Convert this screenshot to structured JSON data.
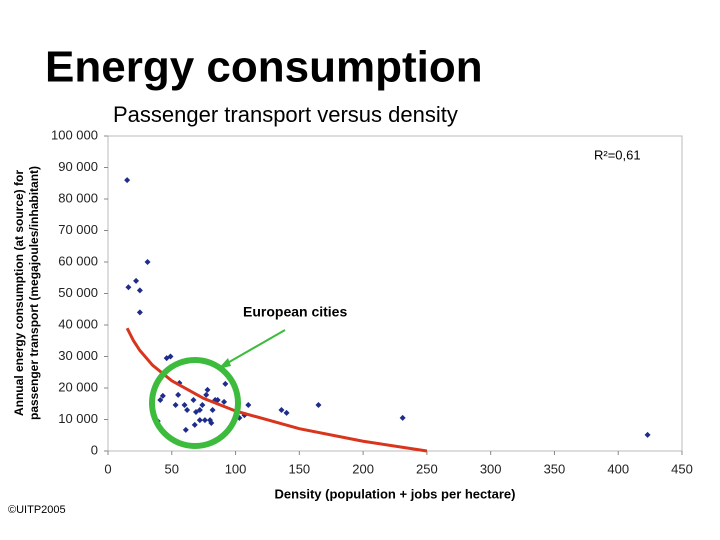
{
  "title": "Energy consumption",
  "footer": "©UITP2005",
  "chart_data": {
    "type": "scatter",
    "title": "Passenger transport versus density",
    "xlabel": "Density (population + jobs per hectare)",
    "ylabel": [
      "Annual energy consumption (at source) for",
      "passenger transport (megajoules/inhabitant)"
    ],
    "xlim": [
      0,
      450
    ],
    "ylim": [
      0,
      100000
    ],
    "xticks": [
      0,
      50,
      100,
      150,
      200,
      250,
      300,
      350,
      400,
      450
    ],
    "yticks": [
      0,
      {
        "value": 10000,
        "label": "10 000"
      },
      {
        "value": 20000,
        "label": "20 000"
      },
      {
        "value": 30000,
        "label": "30 000"
      },
      {
        "value": 40000,
        "label": "40 000"
      },
      {
        "value": 50000,
        "label": "50 000"
      },
      {
        "value": 60000,
        "label": "60 000"
      },
      {
        "value": 70000,
        "label": "70 000"
      },
      {
        "value": 80000,
        "label": "80 000"
      },
      {
        "value": 90000,
        "label": "90 000"
      },
      {
        "value": 100000,
        "label": "100 000"
      }
    ],
    "grid": false,
    "series": [
      {
        "color": "#1f2d8a",
        "x": [
          15,
          16,
          22,
          25,
          31,
          25,
          46,
          49,
          43,
          41,
          39,
          53,
          56,
          55,
          60,
          62,
          67,
          61,
          68,
          72,
          74,
          77,
          78,
          80,
          76,
          82,
          84,
          86,
          81,
          91,
          92,
          103,
          107,
          110,
          136,
          140,
          165,
          231,
          423,
          69,
          72
        ],
        "values": [
          86000,
          52000,
          54000,
          51000,
          60000,
          44000,
          29500,
          30000,
          17500,
          16200,
          9500,
          14600,
          21600,
          17800,
          14600,
          13000,
          16200,
          6700,
          8300,
          13000,
          14600,
          17800,
          19400,
          9800,
          9800,
          13000,
          16200,
          16200,
          8900,
          15600,
          21300,
          10500,
          11400,
          14600,
          13000,
          12100,
          14600,
          10500,
          5100,
          12400,
          9800
        ]
      }
    ],
    "trendline": {
      "color": "#d9341c",
      "x": [
        15,
        20,
        25,
        35,
        50,
        75,
        100,
        150,
        200,
        250
      ],
      "values": [
        39000,
        35000,
        31900,
        27200,
        22300,
        16700,
        12700,
        7080,
        3090,
        0
      ]
    },
    "annotations": [
      {
        "text": "R²=0,61"
      },
      {
        "text": "European cities"
      }
    ]
  }
}
